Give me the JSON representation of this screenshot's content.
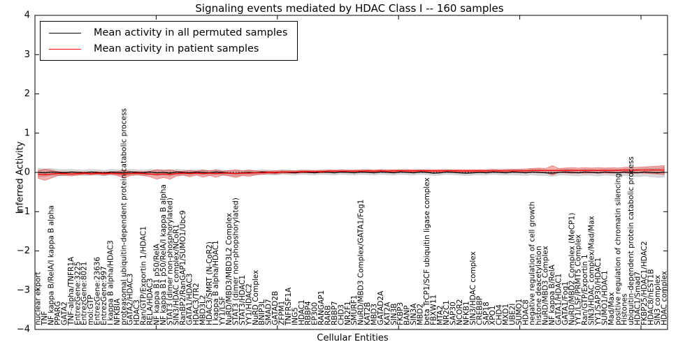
{
  "chart_data": {
    "type": "line",
    "title": "Signaling events mediated by HDAC Class I -- 160 samples",
    "xlabel": "Cellular Entities",
    "ylabel": "Inferred Activity",
    "ylim": [
      -4,
      4
    ],
    "y_tick_labels": [
      "4",
      "3",
      "2",
      "1",
      "0",
      "−1",
      "−2",
      "−3",
      "−4"
    ],
    "grid": false,
    "legend_position": "upper left",
    "zero_line": 0,
    "categories": [
      "nuclear export",
      "TNF",
      "NF kappa B/RelA/I kappa B alpha",
      "PPARG",
      "GATA2",
      "TNF-alpha/TNFR1A",
      "EntrezGene:3225",
      "EntrezGene:8021",
      "mol:GTP",
      "EntrezGene:23636",
      "EntrezGene:997",
      "I kappa B alpha/HDAC3",
      "NFKBIA",
      "proteasomal ubiquitin-dependent protein catabolic process",
      "GATA2/HDAC3",
      "HDAC3",
      "Ran/GTP/Exportin 1/HDAC1",
      "RELA/HDAC3",
      "NF kappa B1 p50/RelA",
      "NF kappa B1 p50/RelA/I kappa B alpha",
      "STAT3 (dimer non-phosphorylated)",
      "SIN3/HDAC complex/NCoR1",
      "RanBP2/RanGAP1/SUMO1/Ubc9",
      "GATA1/HDAC3",
      "HDAC3/TR2",
      "MBD3L2",
      "HDAC3/SMRT (N-CoR2)",
      "I kappa B alpha/HDAC1",
      "YY1/LSF",
      "NuRD/MBD3/MBD3L2 Complex",
      "STAT3 (dimer non-phopshorylated)",
      "STAT3/HDAC1",
      "YY1/HDAC2",
      "NuRD Complex",
      "BNIP3L",
      "SMAD7",
      "GATAD2B",
      "ZFPM1",
      "TNFRSF1A",
      "ING5",
      "HDAC1",
      "RBBP4",
      "EP300",
      "RANGAP1",
      "RARB",
      "RBBP7",
      "CHD3",
      "NR2F1",
      "SMURF1",
      "NuRD/MBD3 Complex/GATA1/Fog1",
      "KAT2B",
      "MBD3",
      "GATAD2A",
      "KAT2A",
      "SIN3B",
      "FKBP3",
      "BANP",
      "SIN3A",
      "MBD2",
      "beta TrCP1/SCF ubiquitin ligase complex",
      "FBXW11",
      "MTA2",
      "NR2C1",
      "SAP30",
      "NCOR2",
      "NFKB1",
      "SIN3/HDAC complex",
      "CREBBP",
      "SAP18",
      "XPO1",
      "CHD4",
      "MXD1",
      "UBE2I",
      "SUMO1",
      "HDAC8",
      "negative regulation of cell growth",
      "histone deacetylation",
      "NuRD/MBD3 Complex",
      "NF kappa B/RelA",
      "GATA1/HDAC1",
      "GATA1/Fog1",
      "NuRD/MBD2 Complex (MeCP1)",
      "YY1/LSF/PRMT5 Complex",
      "Ran/GTP/Exportin 1",
      "SIN3/HDAC complex/Mad/Max",
      "YY1/SAP30/HDAC1",
      "SUMO1/HDAC1",
      "Mad/Max",
      "positive regulation of chromatin silencing",
      "Histones",
      "ubiquitin-dependent protein catabolic process",
      "HDAC1/Smad7",
      "FKBP25/HDAC1/HDAC2",
      "HDAC8/hEST1B",
      "SIN3 complex",
      "HDAC complex"
    ],
    "series": [
      {
        "name": "Mean activity in all permuted samples",
        "color": "#000000",
        "values": [
          0,
          -0.01,
          0.01,
          0,
          -0.01,
          0.01,
          0,
          -0.01,
          0.01,
          0,
          -0.02,
          0.01,
          0,
          -0.01,
          0.01,
          0,
          -0.01,
          0.01,
          -0.01,
          0,
          -0.02,
          0.01,
          0,
          -0.01,
          0.01,
          0,
          -0.01,
          0.01,
          0,
          -0.02,
          -0.03,
          -0.01,
          0,
          -0.01,
          0.01,
          0,
          -0.01,
          0.01,
          0,
          -0.01,
          0.01,
          0,
          -0.01,
          0.01,
          0,
          -0.01,
          0.01,
          0,
          -0.01,
          0.01,
          0,
          -0.01,
          0.01,
          0,
          -0.01,
          0.01,
          0,
          -0.01,
          0.01,
          0,
          -0.02,
          -0.01,
          0.01,
          0,
          -0.01,
          -0.02,
          -0.01,
          0,
          -0.01,
          0.01,
          0,
          -0.01,
          0.01,
          0,
          -0.01,
          0.01,
          0,
          -0.01,
          -0.02,
          0,
          0.01,
          0,
          -0.01,
          0.01,
          0,
          -0.01,
          0.01,
          0,
          -0.01,
          0.01,
          0,
          -0.01,
          0.01,
          0,
          -0.01,
          0.01
        ]
      },
      {
        "name": "Mean activity in patient samples",
        "color": "#ff0000",
        "values": [
          -0.05,
          -0.06,
          -0.04,
          -0.03,
          -0.03,
          -0.04,
          -0.03,
          -0.02,
          -0.03,
          -0.02,
          -0.03,
          -0.02,
          -0.03,
          -0.04,
          -0.03,
          -0.02,
          -0.03,
          -0.04,
          -0.05,
          -0.04,
          -0.05,
          -0.03,
          -0.02,
          -0.03,
          -0.02,
          -0.03,
          -0.02,
          -0.03,
          -0.02,
          -0.02,
          -0.03,
          -0.02,
          -0.02,
          -0.01,
          -0.01,
          0,
          0,
          0.01,
          0.01,
          0.01,
          0.02,
          0.02,
          0.02,
          0.02,
          0.03,
          0.03,
          0.03,
          0.03,
          0.03,
          0.03,
          0.04,
          0.03,
          0.04,
          0.03,
          0.04,
          0.04,
          0.04,
          0.04,
          0.04,
          0.04,
          0.04,
          0.04,
          0.04,
          0.04,
          0.04,
          0.04,
          0.04,
          0.04,
          0.04,
          0.04,
          0.04,
          0.04,
          0.04,
          0.04,
          0.04,
          0.05,
          0.05,
          0.05,
          0.05,
          0.05,
          0.05,
          0.05,
          0.05,
          0.05,
          0.05,
          0.05,
          0.05,
          0.05,
          0.05,
          0.06,
          0.05,
          0.06,
          0.06,
          0.06,
          0.06,
          0.06
        ]
      }
    ],
    "bands": [
      {
        "name": "permuted samples range",
        "fill": "rgba(0,0,0,0.15)",
        "stroke": "rgba(0,0,0,0.10)",
        "center_series": 0,
        "halfwidths": [
          0.11,
          0.1,
          0.09,
          0.08,
          0.08,
          0.07,
          0.07,
          0.07,
          0.07,
          0.07,
          0.07,
          0.07,
          0.07,
          0.08,
          0.07,
          0.07,
          0.07,
          0.07,
          0.08,
          0.07,
          0.08,
          0.07,
          0.07,
          0.07,
          0.06,
          0.07,
          0.06,
          0.07,
          0.06,
          0.06,
          0.07,
          0.06,
          0.06,
          0.06,
          0.06,
          0.06,
          0.06,
          0.06,
          0.06,
          0.06,
          0.06,
          0.06,
          0.06,
          0.06,
          0.06,
          0.06,
          0.06,
          0.06,
          0.06,
          0.06,
          0.06,
          0.06,
          0.06,
          0.06,
          0.06,
          0.06,
          0.06,
          0.06,
          0.06,
          0.06,
          0.06,
          0.06,
          0.06,
          0.06,
          0.06,
          0.06,
          0.06,
          0.06,
          0.06,
          0.06,
          0.06,
          0.06,
          0.07,
          0.07,
          0.07,
          0.07,
          0.08,
          0.07,
          0.08,
          0.07,
          0.08,
          0.08,
          0.08,
          0.08,
          0.08,
          0.08,
          0.08,
          0.08,
          0.09,
          0.09,
          0.09,
          0.1,
          0.1,
          0.11,
          0.12,
          0.13
        ]
      },
      {
        "name": "patient samples range",
        "fill": "rgba(222,24,24,0.33)",
        "stroke": "rgba(222,24,24,0.45)",
        "center_series": 1,
        "halfwidths": [
          0.1,
          0.14,
          0.1,
          0.05,
          0.04,
          0.05,
          0.04,
          0.03,
          0.04,
          0.03,
          0.04,
          0.03,
          0.05,
          0.1,
          0.05,
          0.04,
          0.05,
          0.07,
          0.12,
          0.09,
          0.12,
          0.06,
          0.05,
          0.08,
          0.05,
          0.09,
          0.06,
          0.09,
          0.05,
          0.07,
          0.1,
          0.06,
          0.08,
          0.05,
          0.04,
          0.03,
          0.04,
          0.03,
          0.03,
          0.03,
          0.03,
          0.03,
          0.03,
          0.03,
          0.03,
          0.03,
          0.03,
          0.03,
          0.03,
          0.03,
          0.03,
          0.03,
          0.03,
          0.03,
          0.03,
          0.03,
          0.03,
          0.03,
          0.03,
          0.03,
          0.03,
          0.03,
          0.03,
          0.03,
          0.03,
          0.03,
          0.03,
          0.03,
          0.03,
          0.04,
          0.03,
          0.04,
          0.04,
          0.04,
          0.05,
          0.05,
          0.06,
          0.05,
          0.12,
          0.05,
          0.06,
          0.07,
          0.06,
          0.07,
          0.06,
          0.07,
          0.06,
          0.07,
          0.06,
          0.07,
          0.08,
          0.07,
          0.08,
          0.09,
          0.1,
          0.11
        ]
      }
    ]
  }
}
